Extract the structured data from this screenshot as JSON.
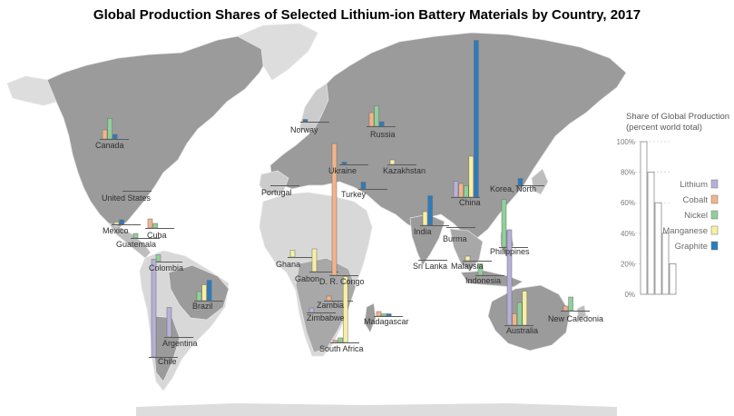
{
  "chart_data": {
    "type": "bar",
    "title": "Global Production Shares of Selected Lithium-ion Battery Materials by Country, 2017",
    "scale_title": "Share of Global Production",
    "scale_subtitle": "(percent world total)",
    "scale_ticks": [
      "0%",
      "20%",
      "40%",
      "60%",
      "80%",
      "100%"
    ],
    "ylim": [
      0,
      100
    ],
    "series": [
      {
        "name": "Lithium",
        "color": "#b8b0d8"
      },
      {
        "name": "Cobalt",
        "color": "#f2b48a"
      },
      {
        "name": "Nickel",
        "color": "#8fd09a"
      },
      {
        "name": "Manganese",
        "color": "#f7f0a2"
      },
      {
        "name": "Graphite",
        "color": "#2d7bbd"
      }
    ],
    "countries": [
      {
        "name": "Canada",
        "values": [
          0,
          4,
          9,
          0,
          2
        ]
      },
      {
        "name": "United States",
        "values": [
          0,
          0,
          0,
          0,
          0
        ]
      },
      {
        "name": "Mexico",
        "values": [
          0,
          0,
          0,
          1,
          2
        ]
      },
      {
        "name": "Cuba",
        "values": [
          0,
          4,
          2,
          0,
          0
        ]
      },
      {
        "name": "Guatemala",
        "values": [
          0,
          0,
          2,
          0,
          0
        ]
      },
      {
        "name": "Colombia",
        "values": [
          0,
          0,
          3,
          0,
          0
        ]
      },
      {
        "name": "Brazil",
        "values": [
          0,
          0,
          4,
          7,
          9
        ]
      },
      {
        "name": "Chile",
        "values": [
          43,
          0,
          0,
          0,
          0
        ]
      },
      {
        "name": "Argentina",
        "values": [
          13,
          0,
          0,
          0,
          0
        ]
      },
      {
        "name": "Norway",
        "values": [
          0,
          0,
          0,
          0,
          1
        ]
      },
      {
        "name": "Russia",
        "values": [
          0,
          6,
          9,
          0,
          2
        ]
      },
      {
        "name": "Ukraine",
        "values": [
          0,
          0,
          0,
          0,
          1
        ]
      },
      {
        "name": "Kazakhstan",
        "values": [
          0,
          0,
          0,
          2,
          0
        ]
      },
      {
        "name": "Portugal",
        "values": [
          0,
          0,
          0,
          0,
          0
        ]
      },
      {
        "name": "Turkey",
        "values": [
          0,
          0,
          0,
          0,
          3
        ]
      },
      {
        "name": "China",
        "values": [
          7,
          6,
          5,
          18,
          69
        ]
      },
      {
        "name": "Korea, North",
        "values": [
          0,
          0,
          0,
          0,
          3
        ]
      },
      {
        "name": "India",
        "values": [
          0,
          0,
          0,
          6,
          13
        ]
      },
      {
        "name": "Burma",
        "values": [
          0,
          0,
          0,
          0,
          0
        ]
      },
      {
        "name": "Philippines",
        "values": [
          0,
          0,
          21,
          0,
          0
        ]
      },
      {
        "name": "Sri Lanka",
        "values": [
          0,
          0,
          0,
          0,
          0
        ]
      },
      {
        "name": "Malaysia",
        "values": [
          0,
          0,
          0,
          2,
          0
        ]
      },
      {
        "name": "Indonesia",
        "values": [
          0,
          0,
          5,
          0,
          0
        ]
      },
      {
        "name": "Australia",
        "values": [
          42,
          5,
          10,
          15,
          0
        ]
      },
      {
        "name": "New Caledonia",
        "values": [
          0,
          2,
          6,
          0,
          0
        ]
      },
      {
        "name": "Ghana",
        "values": [
          0,
          0,
          0,
          3,
          0
        ]
      },
      {
        "name": "Gabon",
        "values": [
          0,
          0,
          0,
          10,
          0
        ]
      },
      {
        "name": "D. R. Congo",
        "values": [
          0,
          58,
          0,
          0,
          0
        ]
      },
      {
        "name": "Zambia",
        "values": [
          0,
          2,
          0,
          0,
          0
        ]
      },
      {
        "name": "Zimbabwe",
        "values": [
          2,
          0,
          0,
          0,
          0
        ]
      },
      {
        "name": "Madagascar",
        "values": [
          0,
          2,
          1,
          0,
          1
        ]
      },
      {
        "name": "South Africa",
        "values": [
          0,
          1,
          2,
          29,
          0
        ]
      }
    ]
  }
}
